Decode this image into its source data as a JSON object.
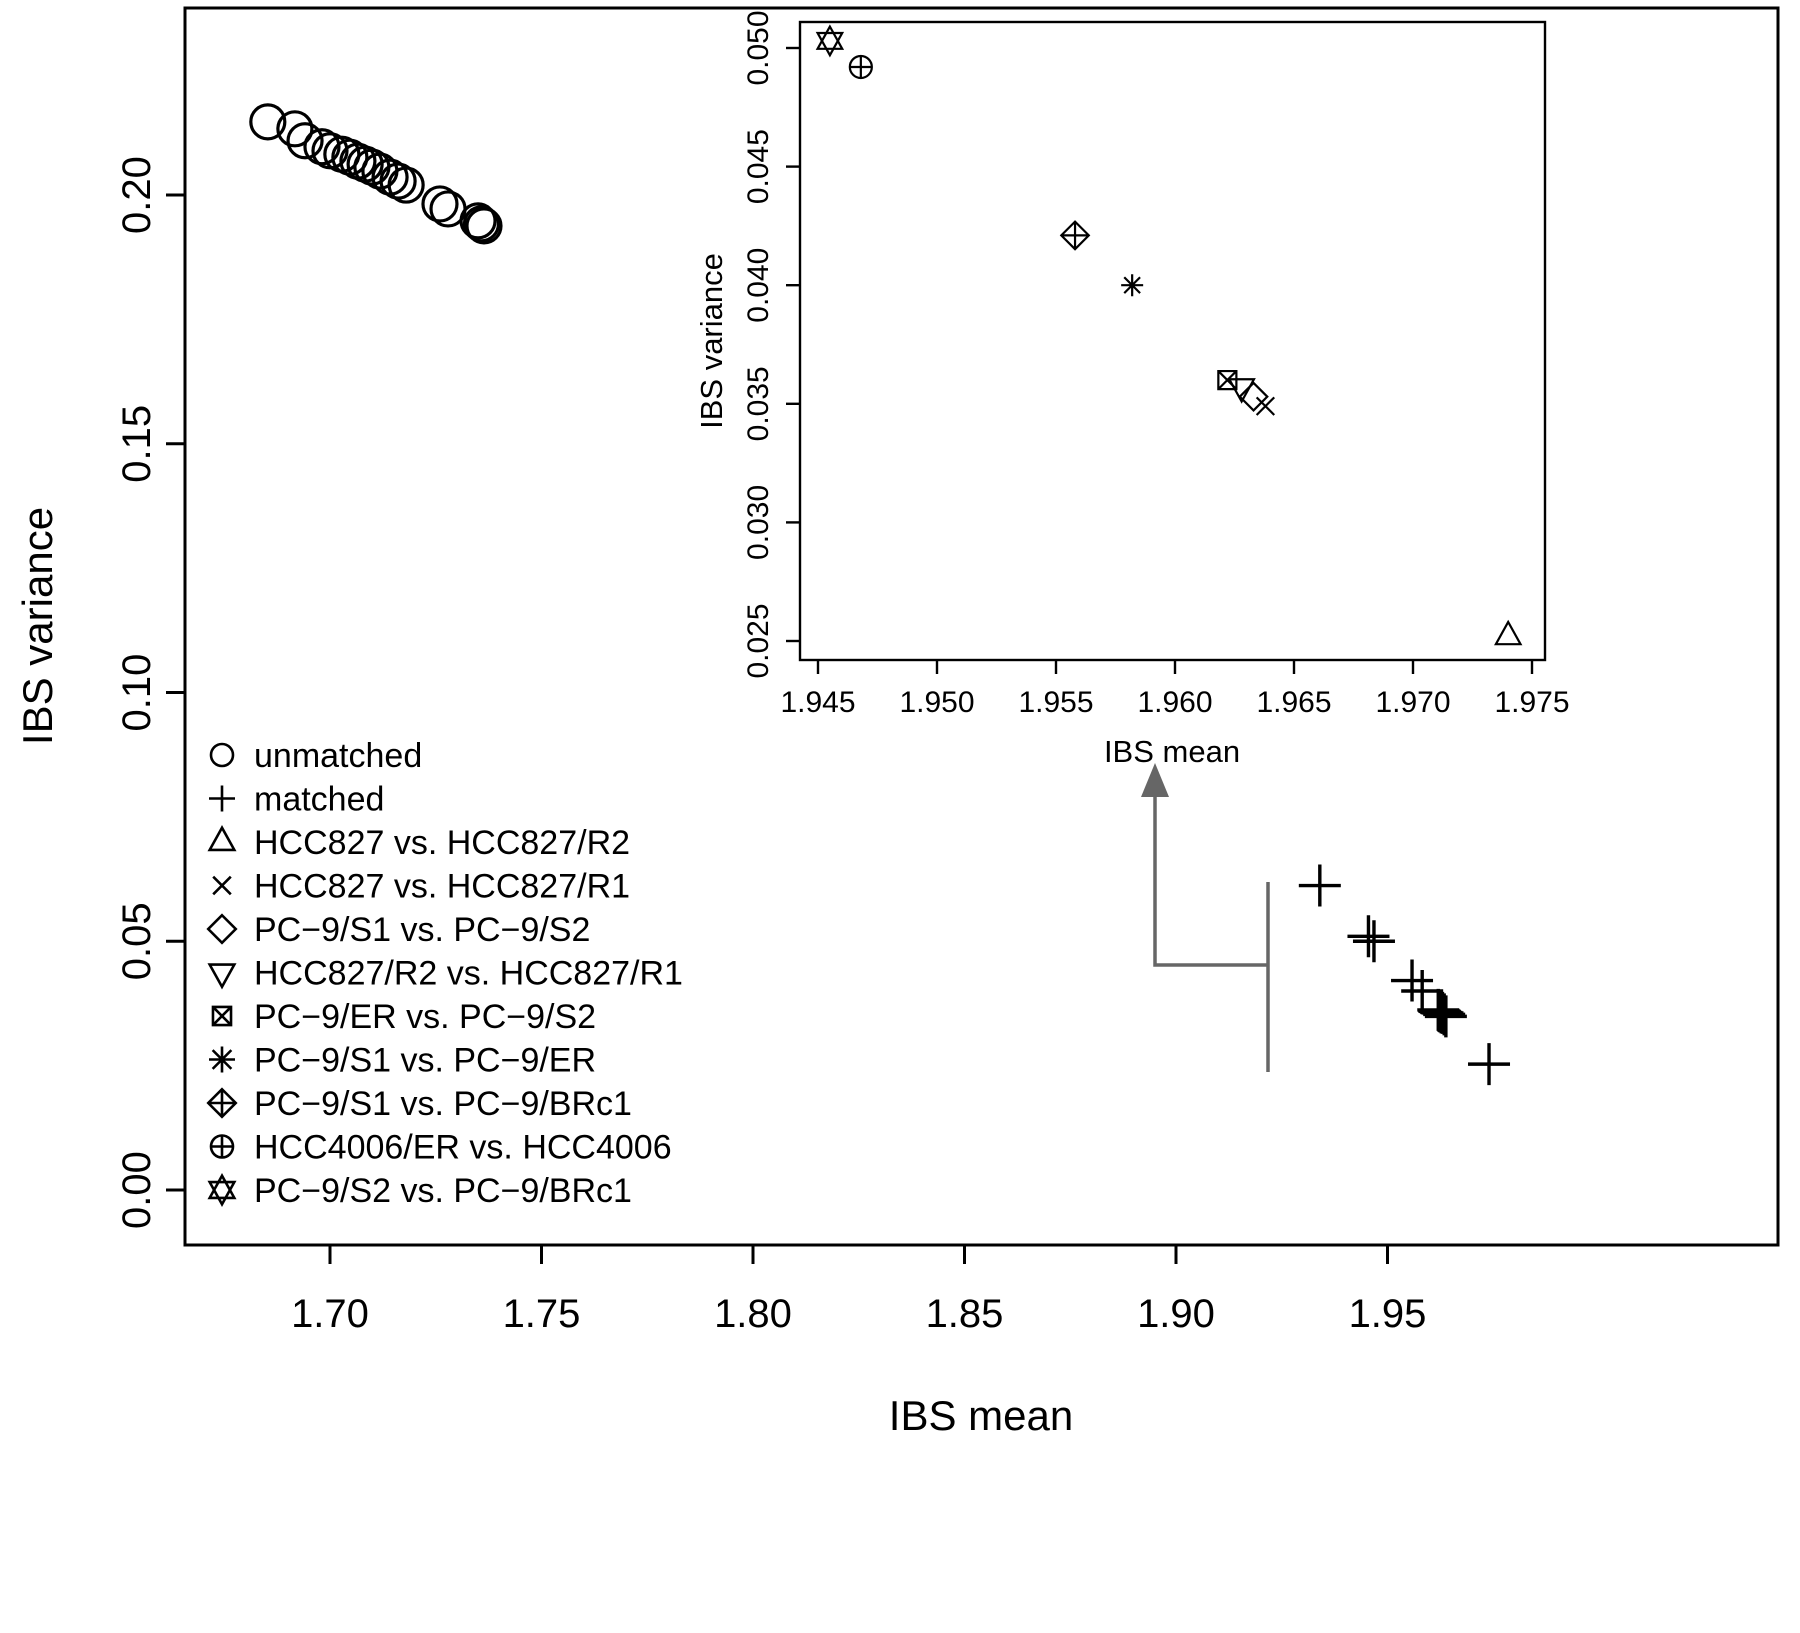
{
  "figure": {
    "background": "#ffffff",
    "foreground": "#000000",
    "annotation_color": "#666666"
  },
  "chart_data": [
    {
      "type": "scatter",
      "id": "main",
      "xlabel": "IBS mean",
      "ylabel": "IBS variance",
      "xlim": [
        1.666,
        2.04
      ],
      "ylim": [
        -0.011,
        0.238
      ],
      "grid": false,
      "xticks": [
        1.7,
        1.75,
        1.8,
        1.85,
        1.9,
        1.95
      ],
      "xtick_labels": [
        "1.70",
        "1.75",
        "1.80",
        "1.85",
        "1.90",
        "1.95"
      ],
      "yticks": [
        0.0,
        0.05,
        0.1,
        0.15,
        0.2
      ],
      "ytick_labels": [
        "0.00",
        "0.05",
        "0.10",
        "0.15",
        "0.20"
      ],
      "series": [
        {
          "name": "unmatched",
          "marker": "circle",
          "points": [
            [
              1.6853,
              0.2147
            ],
            [
              1.6917,
              0.2133
            ],
            [
              1.6941,
              0.2109
            ],
            [
              1.6981,
              0.2097
            ],
            [
              1.7,
              0.2089
            ],
            [
              1.7028,
              0.2082
            ],
            [
              1.7047,
              0.2076
            ],
            [
              1.7066,
              0.2068
            ],
            [
              1.7083,
              0.2062
            ],
            [
              1.7099,
              0.2056
            ],
            [
              1.7118,
              0.2048
            ],
            [
              1.7142,
              0.2036
            ],
            [
              1.7161,
              0.2028
            ],
            [
              1.718,
              0.202
            ],
            [
              1.726,
              0.1982
            ],
            [
              1.7279,
              0.1972
            ],
            [
              1.735,
              0.1948
            ],
            [
              1.7358,
              0.1942
            ],
            [
              1.7364,
              0.1938
            ]
          ]
        },
        {
          "name": "matched",
          "marker": "plus",
          "points": [
            [
              1.934,
              0.0612
            ],
            [
              1.9455,
              0.051
            ],
            [
              1.9468,
              0.05
            ],
            [
              1.9558,
              0.0421
            ],
            [
              1.9582,
              0.04
            ],
            [
              1.962,
              0.0362
            ],
            [
              1.9622,
              0.036
            ],
            [
              1.9624,
              0.0359
            ],
            [
              1.9627,
              0.0357
            ],
            [
              1.963,
              0.0356
            ],
            [
              1.9634,
              0.0353
            ],
            [
              1.9638,
              0.0349
            ],
            [
              1.974,
              0.0253
            ]
          ]
        }
      ],
      "legend": {
        "position": "bottom-left",
        "items": [
          {
            "marker": "circle",
            "label": "unmatched"
          },
          {
            "marker": "plus",
            "label": "matched"
          },
          {
            "marker": "triangle-up",
            "label": "HCC827 vs. HCC827/R2"
          },
          {
            "marker": "x",
            "label": "HCC827 vs. HCC827/R1"
          },
          {
            "marker": "diamond",
            "label": "PC−9/S1 vs. PC−9/S2"
          },
          {
            "marker": "triangle-down",
            "label": "HCC827/R2 vs. HCC827/R1"
          },
          {
            "marker": "square-x",
            "label": "PC−9/ER vs. PC−9/S2"
          },
          {
            "marker": "asterisk",
            "label": "PC−9/S1 vs. PC−9/ER"
          },
          {
            "marker": "diamond-plus",
            "label": "PC−9/S1 vs. PC−9/BRc1"
          },
          {
            "marker": "circle-plus",
            "label": "HCC4006/ER vs. HCC4006"
          },
          {
            "marker": "star-of-david",
            "label": "PC−9/S2 vs. PC−9/BRc1"
          }
        ]
      }
    },
    {
      "type": "scatter",
      "id": "inset",
      "xlabel": "IBS mean",
      "ylabel": "IBS variance",
      "xlim": [
        1.9443,
        1.9755
      ],
      "ylim": [
        0.0243,
        0.0518
      ],
      "grid": false,
      "xticks": [
        1.945,
        1.95,
        1.955,
        1.96,
        1.965,
        1.97,
        1.975
      ],
      "xtick_labels": [
        "1.945",
        "1.950",
        "1.955",
        "1.960",
        "1.965",
        "1.970",
        "1.975"
      ],
      "yticks": [
        0.025,
        0.03,
        0.035,
        0.04,
        0.045,
        0.05
      ],
      "ytick_labels": [
        "0.025",
        "0.030",
        "0.035",
        "0.040",
        "0.045",
        "0.050"
      ],
      "points": [
        {
          "marker": "star-of-david",
          "x": 1.9455,
          "y": 0.0503,
          "pair": "PC−9/S2 vs. PC−9/BRc1"
        },
        {
          "marker": "circle-plus",
          "x": 1.9468,
          "y": 0.0492,
          "pair": "HCC4006/ER vs. HCC4006"
        },
        {
          "marker": "diamond-plus",
          "x": 1.9558,
          "y": 0.0421,
          "pair": "PC−9/S1 vs. PC−9/BRc1"
        },
        {
          "marker": "asterisk",
          "x": 1.9582,
          "y": 0.04,
          "pair": "PC−9/S1 vs. PC−9/ER"
        },
        {
          "marker": "square-x",
          "x": 1.9622,
          "y": 0.036,
          "pair": "PC−9/ER vs. PC−9/S2"
        },
        {
          "marker": "triangle-down",
          "x": 1.9628,
          "y": 0.0357,
          "pair": "HCC827/R2 vs. HCC827/R1"
        },
        {
          "marker": "diamond",
          "x": 1.9633,
          "y": 0.0353,
          "pair": "PC−9/S1 vs. PC−9/S2"
        },
        {
          "marker": "x",
          "x": 1.9638,
          "y": 0.0349,
          "pair": "HCC827 vs. HCC827/R1"
        },
        {
          "marker": "triangle-up",
          "x": 1.974,
          "y": 0.0252,
          "pair": "HCC827 vs. HCC827/R2"
        }
      ]
    }
  ],
  "annotation": {
    "type": "zoom-callout",
    "description": "bracket on matched cluster with arrow pointing to the inset",
    "color": "#666666"
  }
}
